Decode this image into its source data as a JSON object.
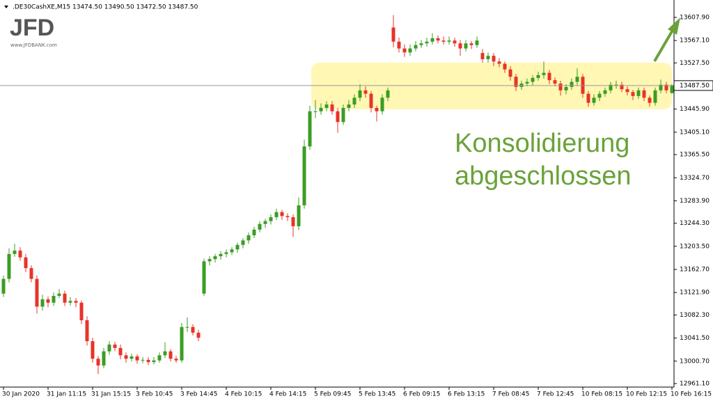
{
  "header": {
    "symbol": ".DE30CashXE,M15",
    "ohlc_text": "13474.50 13490.50 13472.50 13487.50"
  },
  "logo": {
    "name": "JFD",
    "url": "www.JFDBANK.com"
  },
  "chart_data": {
    "type": "candlestick",
    "annotation": [
      "Konsolidierung",
      "abgeschlossen"
    ],
    "up_color": "#3a9d23",
    "down_color": "#e8332a",
    "ylim": [
      12954.9,
      13638.6
    ],
    "yticks": [
      {
        "value": 12961.1,
        "label": "12961.10"
      },
      {
        "value": 13000.7,
        "label": "13000.70"
      },
      {
        "value": 13041.5,
        "label": "13041.50"
      },
      {
        "value": 13082.3,
        "label": "13082.30"
      },
      {
        "value": 13121.9,
        "label": "13121.90"
      },
      {
        "value": 13162.7,
        "label": "13162.70"
      },
      {
        "value": 13203.5,
        "label": "13203.50"
      },
      {
        "value": 13244.3,
        "label": "13244.30"
      },
      {
        "value": 13283.9,
        "label": "13283.90"
      },
      {
        "value": 13324.7,
        "label": "13324.70"
      },
      {
        "value": 13365.5,
        "label": "13365.50"
      },
      {
        "value": 13405.1,
        "label": "13405.10"
      },
      {
        "value": 13445.9,
        "label": "13445.90"
      },
      {
        "value": 13527.5,
        "label": "13527.50"
      },
      {
        "value": 13567.1,
        "label": "13567.10"
      },
      {
        "value": 13607.9,
        "label": "13607.90"
      }
    ],
    "price_line": {
      "value": 13487.5,
      "label": "13487.50"
    },
    "categories": [
      "30 Jan 2020",
      null,
      null,
      null,
      null,
      null,
      null,
      null,
      "31 Jan 11:15",
      null,
      null,
      null,
      null,
      null,
      null,
      null,
      "31 Jan 15:15",
      null,
      null,
      null,
      null,
      null,
      null,
      null,
      "3 Feb 10:45",
      null,
      null,
      null,
      null,
      null,
      null,
      null,
      "3 Feb 14:45",
      null,
      null,
      null,
      null,
      null,
      null,
      null,
      "4 Feb 10:15",
      null,
      null,
      null,
      null,
      null,
      null,
      null,
      "4 Feb 14:15",
      null,
      null,
      null,
      null,
      null,
      null,
      null,
      "5 Feb 09:45",
      null,
      null,
      null,
      null,
      null,
      null,
      null,
      "5 Feb 13:45",
      null,
      null,
      null,
      null,
      null,
      null,
      null,
      "6 Feb 09:15",
      null,
      null,
      null,
      null,
      null,
      null,
      null,
      "6 Feb 13:15",
      null,
      null,
      null,
      null,
      null,
      null,
      null,
      "7 Feb 08:45",
      null,
      null,
      null,
      null,
      null,
      null,
      null,
      "7 Feb 12:45",
      null,
      null,
      null,
      null,
      null,
      null,
      null,
      "10 Feb 08:15",
      null,
      null,
      null,
      null,
      null,
      null,
      null,
      "10 Feb 12:15",
      null,
      null,
      null,
      null,
      null,
      null,
      null,
      "10 Feb 16:15"
    ],
    "ohlc": [
      [
        13120,
        13152,
        13114,
        13146
      ],
      [
        13146,
        13200,
        13140,
        13190
      ],
      [
        13190,
        13208,
        13185,
        13196
      ],
      [
        13196,
        13202,
        13178,
        13184
      ],
      [
        13184,
        13190,
        13158,
        13165
      ],
      [
        13165,
        13170,
        13140,
        13146
      ],
      [
        13146,
        13152,
        13085,
        13097
      ],
      [
        13097,
        13118,
        13090,
        13110
      ],
      [
        13110,
        13115,
        13096,
        13104
      ],
      [
        13104,
        13122,
        13098,
        13116
      ],
      [
        13116,
        13128,
        13112,
        13120
      ],
      [
        13120,
        13125,
        13098,
        13104
      ],
      [
        13104,
        13114,
        13099,
        13107
      ],
      [
        13107,
        13112,
        13096,
        13104
      ],
      [
        13104,
        13108,
        13066,
        13073
      ],
      [
        13073,
        13080,
        13028,
        13036
      ],
      [
        13036,
        13042,
        12998,
        13005
      ],
      [
        13005,
        13010,
        12978,
        12993
      ],
      [
        12993,
        13024,
        12988,
        13018
      ],
      [
        13018,
        13036,
        13012,
        13030
      ],
      [
        13030,
        13035,
        13018,
        13024
      ],
      [
        13024,
        13030,
        13004,
        13011
      ],
      [
        13011,
        13016,
        12998,
        13005
      ],
      [
        13005,
        13014,
        13000,
        13009
      ],
      [
        13009,
        13013,
        12996,
        13002
      ],
      [
        13002,
        13008,
        12997,
        13003
      ],
      [
        13003,
        13008,
        12994,
        12999
      ],
      [
        12999,
        13008,
        12995,
        13002
      ],
      [
        13002,
        13016,
        12998,
        13011
      ],
      [
        13011,
        13034,
        13006,
        13018
      ],
      [
        13018,
        13022,
        13000,
        13005
      ],
      [
        13005,
        13010,
        12998,
        13002
      ],
      [
        13002,
        13068,
        12998,
        13061
      ],
      [
        13061,
        13078,
        13052,
        13061
      ],
      [
        13061,
        13066,
        13046,
        13051
      ],
      [
        13051,
        13056,
        13036,
        13042
      ],
      [
        13120,
        13182,
        13116,
        13177
      ],
      [
        13177,
        13186,
        13170,
        13181
      ],
      [
        13181,
        13190,
        13175,
        13186
      ],
      [
        13186,
        13195,
        13180,
        13190
      ],
      [
        13190,
        13198,
        13184,
        13193
      ],
      [
        13193,
        13202,
        13188,
        13198
      ],
      [
        13198,
        13210,
        13192,
        13206
      ],
      [
        13206,
        13218,
        13200,
        13214
      ],
      [
        13214,
        13228,
        13208,
        13223
      ],
      [
        13223,
        13238,
        13218,
        13233
      ],
      [
        13233,
        13248,
        13228,
        13243
      ],
      [
        13243,
        13252,
        13236,
        13248
      ],
      [
        13248,
        13260,
        13242,
        13255
      ],
      [
        13255,
        13270,
        13250,
        13264
      ],
      [
        13264,
        13268,
        13250,
        13257
      ],
      [
        13257,
        13262,
        13248,
        13255
      ],
      [
        13255,
        13260,
        13220,
        13239
      ],
      [
        13239,
        13290,
        13232,
        13276
      ],
      [
        13276,
        13392,
        13270,
        13380
      ],
      [
        13380,
        13452,
        13374,
        13442
      ],
      [
        13442,
        13462,
        13430,
        13442
      ],
      [
        13442,
        13456,
        13436,
        13448
      ],
      [
        13448,
        13460,
        13442,
        13454
      ],
      [
        13454,
        13460,
        13436,
        13442
      ],
      [
        13442,
        13448,
        13404,
        13423
      ],
      [
        13423,
        13454,
        13418,
        13448
      ],
      [
        13448,
        13462,
        13442,
        13454
      ],
      [
        13454,
        13472,
        13448,
        13466
      ],
      [
        13466,
        13490,
        13460,
        13479
      ],
      [
        13479,
        13486,
        13466,
        13473
      ],
      [
        13473,
        13478,
        13440,
        13448
      ],
      [
        13448,
        13452,
        13424,
        13442
      ],
      [
        13442,
        13472,
        13436,
        13466
      ],
      [
        13466,
        13484,
        13460,
        13479
      ],
      [
        13590,
        13612,
        13555,
        13565
      ],
      [
        13565,
        13572,
        13546,
        13553
      ],
      [
        13553,
        13560,
        13538,
        13546
      ],
      [
        13546,
        13560,
        13540,
        13553
      ],
      [
        13553,
        13566,
        13548,
        13559
      ],
      [
        13559,
        13568,
        13554,
        13562
      ],
      [
        13562,
        13572,
        13556,
        13565
      ],
      [
        13565,
        13580,
        13560,
        13571
      ],
      [
        13571,
        13576,
        13562,
        13567
      ],
      [
        13567,
        13574,
        13560,
        13565
      ],
      [
        13565,
        13574,
        13560,
        13567
      ],
      [
        13567,
        13572,
        13556,
        13562
      ],
      [
        13562,
        13568,
        13540,
        13553
      ],
      [
        13553,
        13568,
        13548,
        13562
      ],
      [
        13562,
        13566,
        13552,
        13559
      ],
      [
        13559,
        13574,
        13554,
        13567
      ],
      [
        13545,
        13552,
        13528,
        13534
      ],
      [
        13534,
        13546,
        13528,
        13540
      ],
      [
        13540,
        13545,
        13522,
        13530
      ],
      [
        13530,
        13536,
        13520,
        13526
      ],
      [
        13526,
        13530,
        13510,
        13516
      ],
      [
        13516,
        13522,
        13496,
        13503
      ],
      [
        13503,
        13508,
        13478,
        13485
      ],
      [
        13485,
        13496,
        13480,
        13491
      ],
      [
        13491,
        13500,
        13486,
        13494
      ],
      [
        13494,
        13506,
        13488,
        13501
      ],
      [
        13501,
        13512,
        13496,
        13506
      ],
      [
        13506,
        13530,
        13500,
        13510
      ],
      [
        13510,
        13515,
        13490,
        13497
      ],
      [
        13497,
        13502,
        13486,
        13491
      ],
      [
        13491,
        13496,
        13470,
        13479
      ],
      [
        13479,
        13490,
        13472,
        13485
      ],
      [
        13485,
        13500,
        13480,
        13494
      ],
      [
        13494,
        13518,
        13488,
        13503
      ],
      [
        13503,
        13508,
        13466,
        13473
      ],
      [
        13473,
        13478,
        13450,
        13457
      ],
      [
        13457,
        13472,
        13452,
        13466
      ],
      [
        13466,
        13478,
        13460,
        13473
      ],
      [
        13473,
        13484,
        13468,
        13479
      ],
      [
        13479,
        13494,
        13474,
        13489
      ],
      [
        13489,
        13496,
        13482,
        13489
      ],
      [
        13489,
        13494,
        13476,
        13481
      ],
      [
        13481,
        13486,
        13470,
        13476
      ],
      [
        13476,
        13480,
        13462,
        13469
      ],
      [
        13469,
        13484,
        13464,
        13479
      ],
      [
        13479,
        13484,
        13460,
        13466
      ],
      [
        13466,
        13470,
        13450,
        13457
      ],
      [
        13457,
        13484,
        13452,
        13479
      ],
      [
        13479,
        13498,
        13474,
        13489
      ],
      [
        13489,
        13494,
        13474,
        13479
      ],
      [
        13474.5,
        13490.5,
        13472.5,
        13487.5
      ]
    ]
  }
}
